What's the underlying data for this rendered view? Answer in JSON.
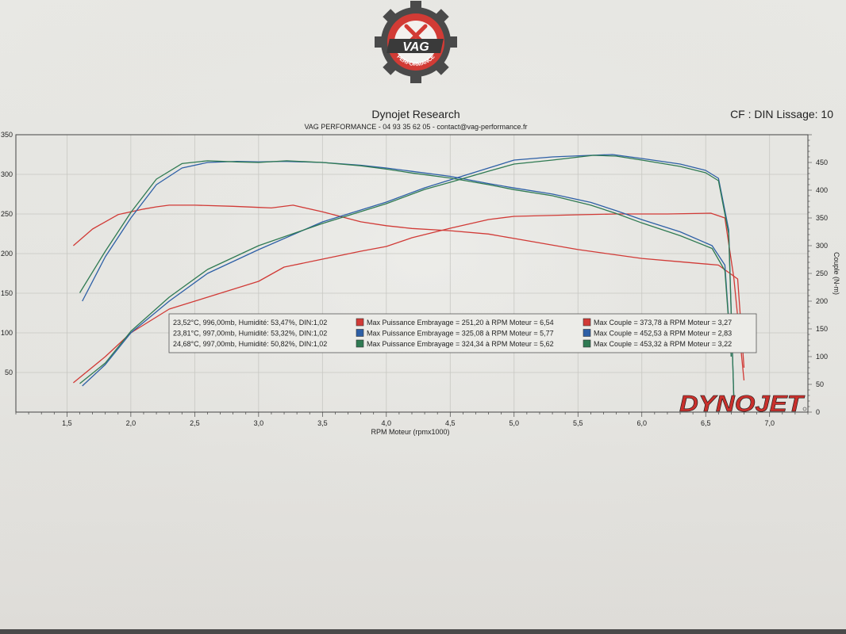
{
  "header": {
    "title": "Dynojet Research",
    "subtitle": "VAG PERFORMANCE - 04 93 35 62 05 - contact@vag-performance.fr",
    "cf_info": "CF : DIN Lissage: 10"
  },
  "logo": {
    "text": "VAG",
    "ring_text": "PERFORMANCE"
  },
  "brand": {
    "text": "DYNOJET"
  },
  "colors": {
    "red": "#d13a36",
    "blue": "#2d5fa6",
    "green": "#2f7a52",
    "grid": "#c7c7c2",
    "axis": "#444444"
  },
  "chart_data": {
    "type": "line",
    "xlabel": "RPM Moteur (rpmx1000)",
    "ylabel_right": "Couple (N-m)",
    "xlim": [
      1.1,
      7.3
    ],
    "ylim_left": [
      0,
      350
    ],
    "ylim_right": [
      0,
      500
    ],
    "x_ticks": [
      "1,5",
      "2,0",
      "2,5",
      "3,0",
      "3,5",
      "4,0",
      "4,5",
      "5,0",
      "5,5",
      "6,0",
      "6,5",
      "7,0"
    ],
    "left_ticks": [
      "50",
      "100",
      "150",
      "200",
      "250",
      "300",
      "350"
    ],
    "right_ticks": [
      "0",
      "50",
      "100",
      "150",
      "200",
      "250",
      "300",
      "350",
      "400",
      "450"
    ],
    "legend": [
      {
        "conditions": "23,52°C, 996,00mb, Humidité: 53,47%, DIN:1,02",
        "power": "Max Puissance Embrayage = 251,20 à RPM Moteur = 6,54",
        "torque": "Max Couple = 373,78 à RPM Moteur = 3,27",
        "color": "#d13a36"
      },
      {
        "conditions": "23,81°C, 997,00mb, Humidité: 53,32%, DIN:1,02",
        "power": "Max Puissance Embrayage = 325,08 à RPM Moteur = 5,77",
        "torque": "Max Couple = 452,53 à RPM Moteur = 2,83",
        "color": "#2d5fa6"
      },
      {
        "conditions": "24,68°C, 997,00mb, Humidité: 50,82%, DIN:1,02",
        "power": "Max Puissance Embrayage = 324,34 à RPM Moteur = 5,62",
        "torque": "Max Couple = 453,32 à RPM Moteur = 3,22",
        "color": "#2f7a52"
      }
    ],
    "series": [
      {
        "kind": "torque",
        "axis": "right",
        "color": "#d13a36",
        "x": [
          1.55,
          1.7,
          1.9,
          2.1,
          2.2,
          2.3,
          2.5,
          2.8,
          3.0,
          3.1,
          3.27,
          3.5,
          3.8,
          4.0,
          4.2,
          4.5,
          4.8,
          5.0,
          5.5,
          6.0,
          6.3,
          6.6,
          6.75,
          6.8
        ],
        "y": [
          300,
          330,
          356,
          366,
          370,
          373,
          373,
          371,
          369,
          368,
          373,
          361,
          343,
          336,
          331,
          327,
          321,
          313,
          293,
          277,
          271,
          265,
          240,
          80
        ]
      },
      {
        "kind": "power",
        "axis": "left",
        "color": "#d13a36",
        "x": [
          1.55,
          1.8,
          2.0,
          2.3,
          2.6,
          3.0,
          3.2,
          3.5,
          3.8,
          4.0,
          4.2,
          4.5,
          4.8,
          5.0,
          5.5,
          5.8,
          6.2,
          6.54,
          6.65,
          6.72,
          6.8
        ],
        "y": [
          37,
          70,
          100,
          130,
          145,
          165,
          183,
          193,
          203,
          209,
          220,
          232,
          243,
          247,
          249,
          250,
          250,
          251,
          245,
          170,
          40
        ]
      },
      {
        "kind": "torque",
        "axis": "right",
        "color": "#2d5fa6",
        "x": [
          1.62,
          1.8,
          2.0,
          2.2,
          2.4,
          2.6,
          2.83,
          3.0,
          3.2,
          3.5,
          3.8,
          4.0,
          4.2,
          4.5,
          4.8,
          5.0,
          5.3,
          5.6,
          5.8,
          6.0,
          6.3,
          6.55,
          6.65,
          6.7
        ],
        "y": [
          200,
          280,
          350,
          410,
          440,
          450,
          452,
          451,
          452,
          450,
          445,
          440,
          434,
          425,
          412,
          404,
          393,
          378,
          363,
          347,
          325,
          300,
          265,
          100
        ]
      },
      {
        "kind": "power",
        "axis": "left",
        "color": "#2d5fa6",
        "x": [
          1.62,
          1.8,
          2.0,
          2.3,
          2.6,
          3.0,
          3.5,
          4.0,
          4.3,
          4.5,
          4.8,
          5.0,
          5.3,
          5.6,
          5.77,
          6.0,
          6.3,
          6.5,
          6.6,
          6.68,
          6.72
        ],
        "y": [
          33,
          60,
          100,
          140,
          175,
          205,
          240,
          265,
          283,
          293,
          308,
          318,
          322,
          324,
          325,
          320,
          313,
          305,
          295,
          230,
          20
        ]
      },
      {
        "kind": "torque",
        "axis": "right",
        "color": "#2f7a52",
        "x": [
          1.6,
          1.8,
          2.0,
          2.2,
          2.4,
          2.6,
          2.83,
          3.0,
          3.22,
          3.5,
          3.8,
          4.0,
          4.2,
          4.5,
          4.8,
          5.0,
          5.3,
          5.6,
          5.8,
          6.0,
          6.3,
          6.55,
          6.65,
          6.7
        ],
        "y": [
          215,
          290,
          360,
          420,
          448,
          453,
          451,
          450,
          453,
          450,
          444,
          438,
          431,
          422,
          410,
          401,
          390,
          373,
          358,
          341,
          318,
          295,
          255,
          100
        ]
      },
      {
        "kind": "power",
        "axis": "left",
        "color": "#2f7a52",
        "x": [
          1.6,
          1.8,
          2.0,
          2.3,
          2.6,
          3.0,
          3.5,
          4.0,
          4.3,
          4.5,
          4.8,
          5.0,
          5.3,
          5.62,
          5.8,
          6.0,
          6.3,
          6.5,
          6.6,
          6.68,
          6.72
        ],
        "y": [
          36,
          62,
          102,
          145,
          180,
          210,
          238,
          263,
          281,
          290,
          304,
          313,
          318,
          324,
          323,
          318,
          310,
          302,
          292,
          225,
          20
        ]
      }
    ]
  }
}
